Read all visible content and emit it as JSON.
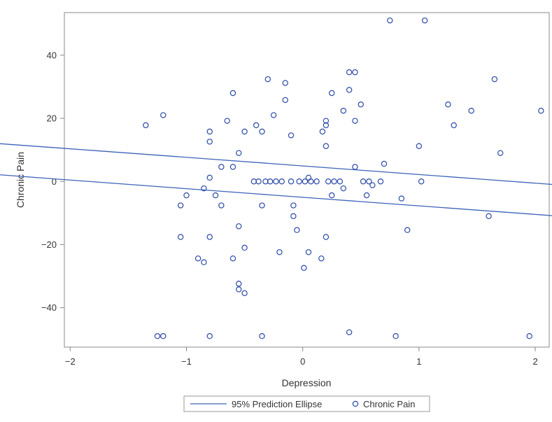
{
  "chart_data": {
    "type": "scatter",
    "xlabel": "Depression",
    "ylabel": "Chronic Pain",
    "xlim": [
      -2.05,
      2.12
    ],
    "ylim": [
      -52.5,
      53.5
    ],
    "x_ticks": [
      -2,
      -1,
      0,
      1,
      2
    ],
    "y_ticks": [
      -40,
      -20,
      0,
      20,
      40
    ],
    "grid": false,
    "legend_position": "bottom",
    "colors": {
      "marker": "#2b4aa8",
      "ellipse": "#3d63b8",
      "axis": "#888888",
      "text": "#333333"
    },
    "series": [
      {
        "name": "95% Prediction Ellipse",
        "kind": "ellipse",
        "ellipse": {
          "center": [
            -0.02,
            0
          ],
          "rx": 1.71,
          "ry": 50.9,
          "rotation_deg": 20
        }
      },
      {
        "name": "Chronic Pain",
        "kind": "scatter",
        "points": [
          [
            0.75,
            51
          ],
          [
            1.05,
            51
          ],
          [
            2.05,
            22.4
          ],
          [
            1.65,
            32.4
          ],
          [
            1.7,
            9
          ],
          [
            1.6,
            -11
          ],
          [
            1.95,
            -49
          ],
          [
            1.25,
            24.4
          ],
          [
            1.3,
            17.8
          ],
          [
            1.45,
            22.4
          ],
          [
            1.02,
            0
          ],
          [
            1.0,
            11.2
          ],
          [
            0.85,
            -5.4
          ],
          [
            0.9,
            -15.4
          ],
          [
            0.8,
            -49
          ],
          [
            0.7,
            5.6
          ],
          [
            0.67,
            0
          ],
          [
            0.6,
            -1.2
          ],
          [
            0.57,
            0
          ],
          [
            0.55,
            -4.4
          ],
          [
            0.52,
            0
          ],
          [
            0.5,
            24.4
          ],
          [
            0.45,
            34.6
          ],
          [
            0.45,
            19.2
          ],
          [
            0.45,
            4.6
          ],
          [
            0.4,
            34.6
          ],
          [
            0.4,
            29
          ],
          [
            0.4,
            -47.8
          ],
          [
            0.35,
            22.4
          ],
          [
            0.35,
            -2.2
          ],
          [
            0.32,
            0
          ],
          [
            0.27,
            0
          ],
          [
            0.25,
            28
          ],
          [
            0.25,
            -4.4
          ],
          [
            0.22,
            0
          ],
          [
            0.2,
            19.2
          ],
          [
            0.2,
            17.8
          ],
          [
            0.2,
            11.2
          ],
          [
            0.2,
            -17.6
          ],
          [
            0.17,
            15.8
          ],
          [
            0.16,
            -24.4
          ],
          [
            0.12,
            0
          ],
          [
            0.07,
            0
          ],
          [
            0.05,
            1.2
          ],
          [
            0.05,
            -22.4
          ],
          [
            0.02,
            0
          ],
          [
            0.01,
            -27.4
          ],
          [
            -0.03,
            0
          ],
          [
            -0.05,
            -15.4
          ],
          [
            -0.08,
            -7.6
          ],
          [
            -0.08,
            -11
          ],
          [
            -0.1,
            14.6
          ],
          [
            -0.1,
            0
          ],
          [
            -0.15,
            31.2
          ],
          [
            -0.15,
            25.8
          ],
          [
            -0.18,
            0
          ],
          [
            -0.2,
            -22.4
          ],
          [
            -0.23,
            0
          ],
          [
            -0.25,
            21
          ],
          [
            -0.28,
            0
          ],
          [
            -0.3,
            32.4
          ],
          [
            -0.32,
            0
          ],
          [
            -0.35,
            15.8
          ],
          [
            -0.35,
            -7.6
          ],
          [
            -0.35,
            -49
          ],
          [
            -0.38,
            0
          ],
          [
            -0.4,
            17.8
          ],
          [
            -0.42,
            0
          ],
          [
            -0.5,
            15.8
          ],
          [
            -0.5,
            -21
          ],
          [
            -0.5,
            -35.4
          ],
          [
            -0.55,
            9
          ],
          [
            -0.55,
            -14.2
          ],
          [
            -0.55,
            -32.4
          ],
          [
            -0.55,
            -34.2
          ],
          [
            -0.6,
            28
          ],
          [
            -0.6,
            4.6
          ],
          [
            -0.6,
            -24.4
          ],
          [
            -0.65,
            19.2
          ],
          [
            -0.7,
            4.6
          ],
          [
            -0.7,
            -7.6
          ],
          [
            -0.75,
            -4.4
          ],
          [
            -0.8,
            15.8
          ],
          [
            -0.8,
            12.6
          ],
          [
            -0.8,
            1.2
          ],
          [
            -0.8,
            -17.6
          ],
          [
            -0.8,
            -49
          ],
          [
            -0.85,
            -2.2
          ],
          [
            -0.85,
            -25.6
          ],
          [
            -0.9,
            -24.4
          ],
          [
            -1.0,
            -4.4
          ],
          [
            -1.05,
            -7.6
          ],
          [
            -1.05,
            -17.6
          ],
          [
            -1.2,
            21
          ],
          [
            -1.2,
            -49
          ],
          [
            -1.25,
            -49
          ],
          [
            -1.35,
            17.8
          ]
        ]
      }
    ]
  }
}
